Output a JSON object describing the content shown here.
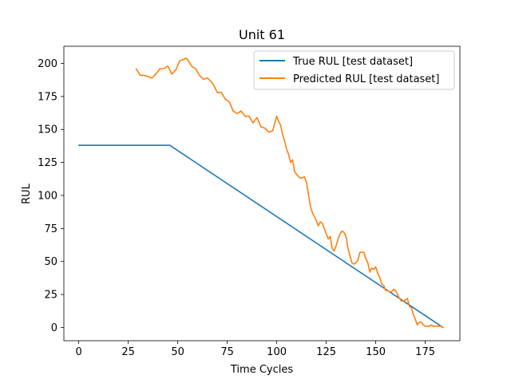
{
  "chart_data": {
    "type": "line",
    "title": "Unit 61",
    "xlabel": "Time Cycles",
    "ylabel": "RUL",
    "xlim": [
      -7.5,
      192.5
    ],
    "ylim": [
      -10,
      213
    ],
    "xticks": [
      0,
      25,
      50,
      75,
      100,
      125,
      150,
      175
    ],
    "yticks": [
      0,
      25,
      50,
      75,
      100,
      125,
      150,
      175,
      200
    ],
    "grid": false,
    "legend_position": "top-right",
    "series": [
      {
        "name": "True RUL [test dataset]",
        "color": "#1f77b4",
        "x": [
          0,
          46,
          184
        ],
        "y": [
          138,
          138,
          0
        ]
      },
      {
        "name": "Predicted RUL [test dataset]",
        "color": "#ff7f0e",
        "x": [
          29,
          31,
          33,
          35,
          37,
          39,
          41,
          43,
          45,
          46,
          47,
          49,
          51,
          53,
          54,
          55,
          57,
          59,
          61,
          63,
          65,
          67,
          68,
          70,
          72,
          74,
          76,
          78,
          80,
          82,
          84,
          86,
          88,
          90,
          92,
          94,
          96,
          98,
          99,
          100,
          101,
          102,
          103,
          104,
          105,
          106,
          107,
          108,
          109,
          110,
          112,
          114,
          115,
          116,
          117,
          118,
          120,
          121,
          122,
          123,
          124,
          126,
          127,
          128,
          129,
          130,
          131,
          132,
          133,
          134,
          135,
          136,
          137,
          138,
          139,
          140,
          141,
          142,
          143,
          144,
          145,
          146,
          147,
          148,
          149,
          150,
          151,
          152,
          153,
          154,
          155,
          156,
          157,
          158,
          159,
          160,
          161,
          162,
          163,
          164,
          165,
          166,
          167,
          168,
          169,
          170,
          171,
          172,
          173,
          174,
          175,
          176,
          177,
          178,
          179,
          180,
          181,
          182,
          183,
          184
        ],
        "y": [
          196,
          191,
          191,
          190,
          189,
          192,
          196,
          196,
          198,
          195,
          192,
          195,
          202,
          203,
          204,
          203,
          198,
          196,
          191,
          188,
          189,
          186,
          184,
          178,
          178,
          173,
          171,
          164,
          162,
          164,
          160,
          160,
          155,
          159,
          152,
          151,
          148,
          149,
          155,
          160,
          156,
          153,
          146,
          141,
          135,
          131,
          125,
          127,
          118,
          116,
          113,
          114,
          110,
          101,
          92,
          87,
          81,
          77,
          80,
          79,
          75,
          67,
          69,
          60,
          58,
          62,
          67,
          71,
          73,
          72,
          69,
          60,
          54,
          49,
          48,
          49,
          51,
          57,
          57,
          57,
          52,
          49,
          42,
          45,
          44,
          46,
          41,
          38,
          33,
          32,
          28,
          28,
          27,
          27,
          29,
          28,
          25,
          22,
          20,
          20,
          21,
          22,
          16,
          15,
          10,
          6,
          2,
          4,
          4,
          2,
          1,
          1,
          1,
          2,
          1,
          1,
          1,
          1,
          1,
          0
        ]
      }
    ]
  }
}
